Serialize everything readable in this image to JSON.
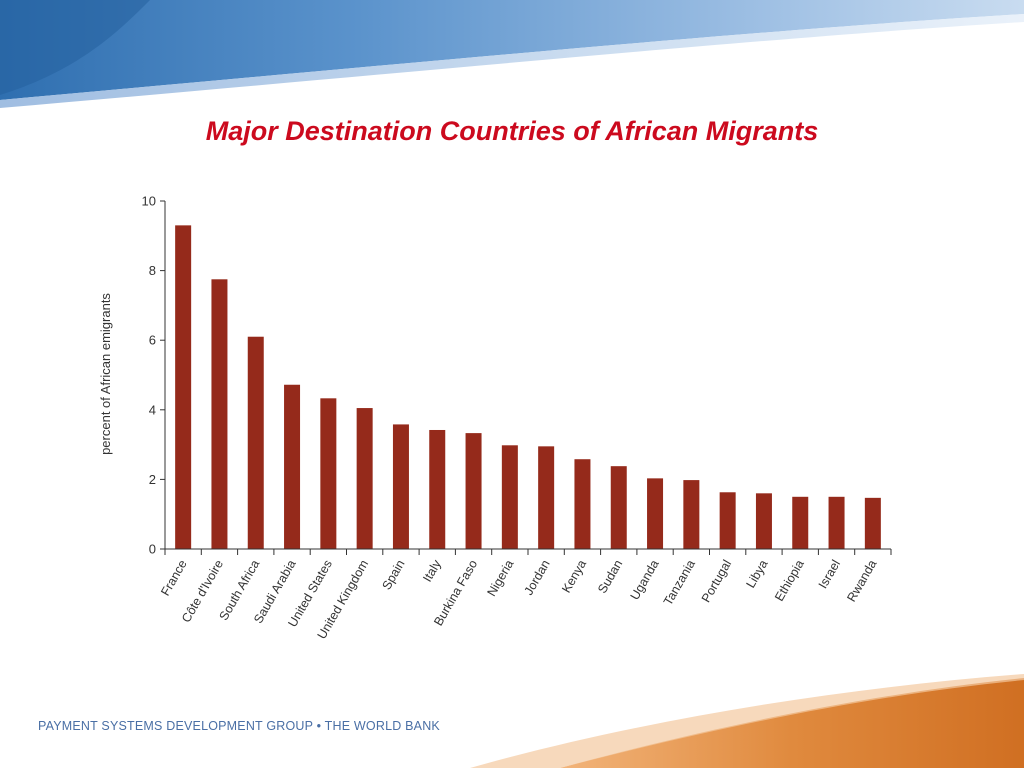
{
  "slide": {
    "title": "Major Destination Countries of African Migrants",
    "footer": "PAYMENT SYSTEMS DEVELOPMENT GROUP • THE WORLD BANK"
  },
  "colors": {
    "title": "#cc0a1e",
    "bar": "#952a1b",
    "axis": "#333333",
    "header_dark": "#3b78b8",
    "header_light": "#a8c7e6",
    "footer_orange": "#d8782b",
    "footer_text": "#4a6fa5"
  },
  "chart_data": {
    "type": "bar",
    "title": "",
    "xlabel": "",
    "ylabel": "percent of African emigrants",
    "ylim": [
      0,
      10
    ],
    "yticks": [
      0,
      2,
      4,
      6,
      8,
      10
    ],
    "grid": false,
    "categories": [
      "France",
      "Côte d'Ivoire",
      "South Africa",
      "Saudi Arabia",
      "United States",
      "United Kingdom",
      "Spain",
      "Italy",
      "Burkina Faso",
      "Nigeria",
      "Jordan",
      "Kenya",
      "Sudan",
      "Uganda",
      "Tanzania",
      "Portugal",
      "Libya",
      "Ethiopia",
      "Israel",
      "Rwanda"
    ],
    "values": [
      9.3,
      7.75,
      6.1,
      4.72,
      4.33,
      4.05,
      3.58,
      3.42,
      3.33,
      2.98,
      2.95,
      2.58,
      2.38,
      2.03,
      1.98,
      1.63,
      1.6,
      1.5,
      1.5,
      1.47
    ]
  }
}
